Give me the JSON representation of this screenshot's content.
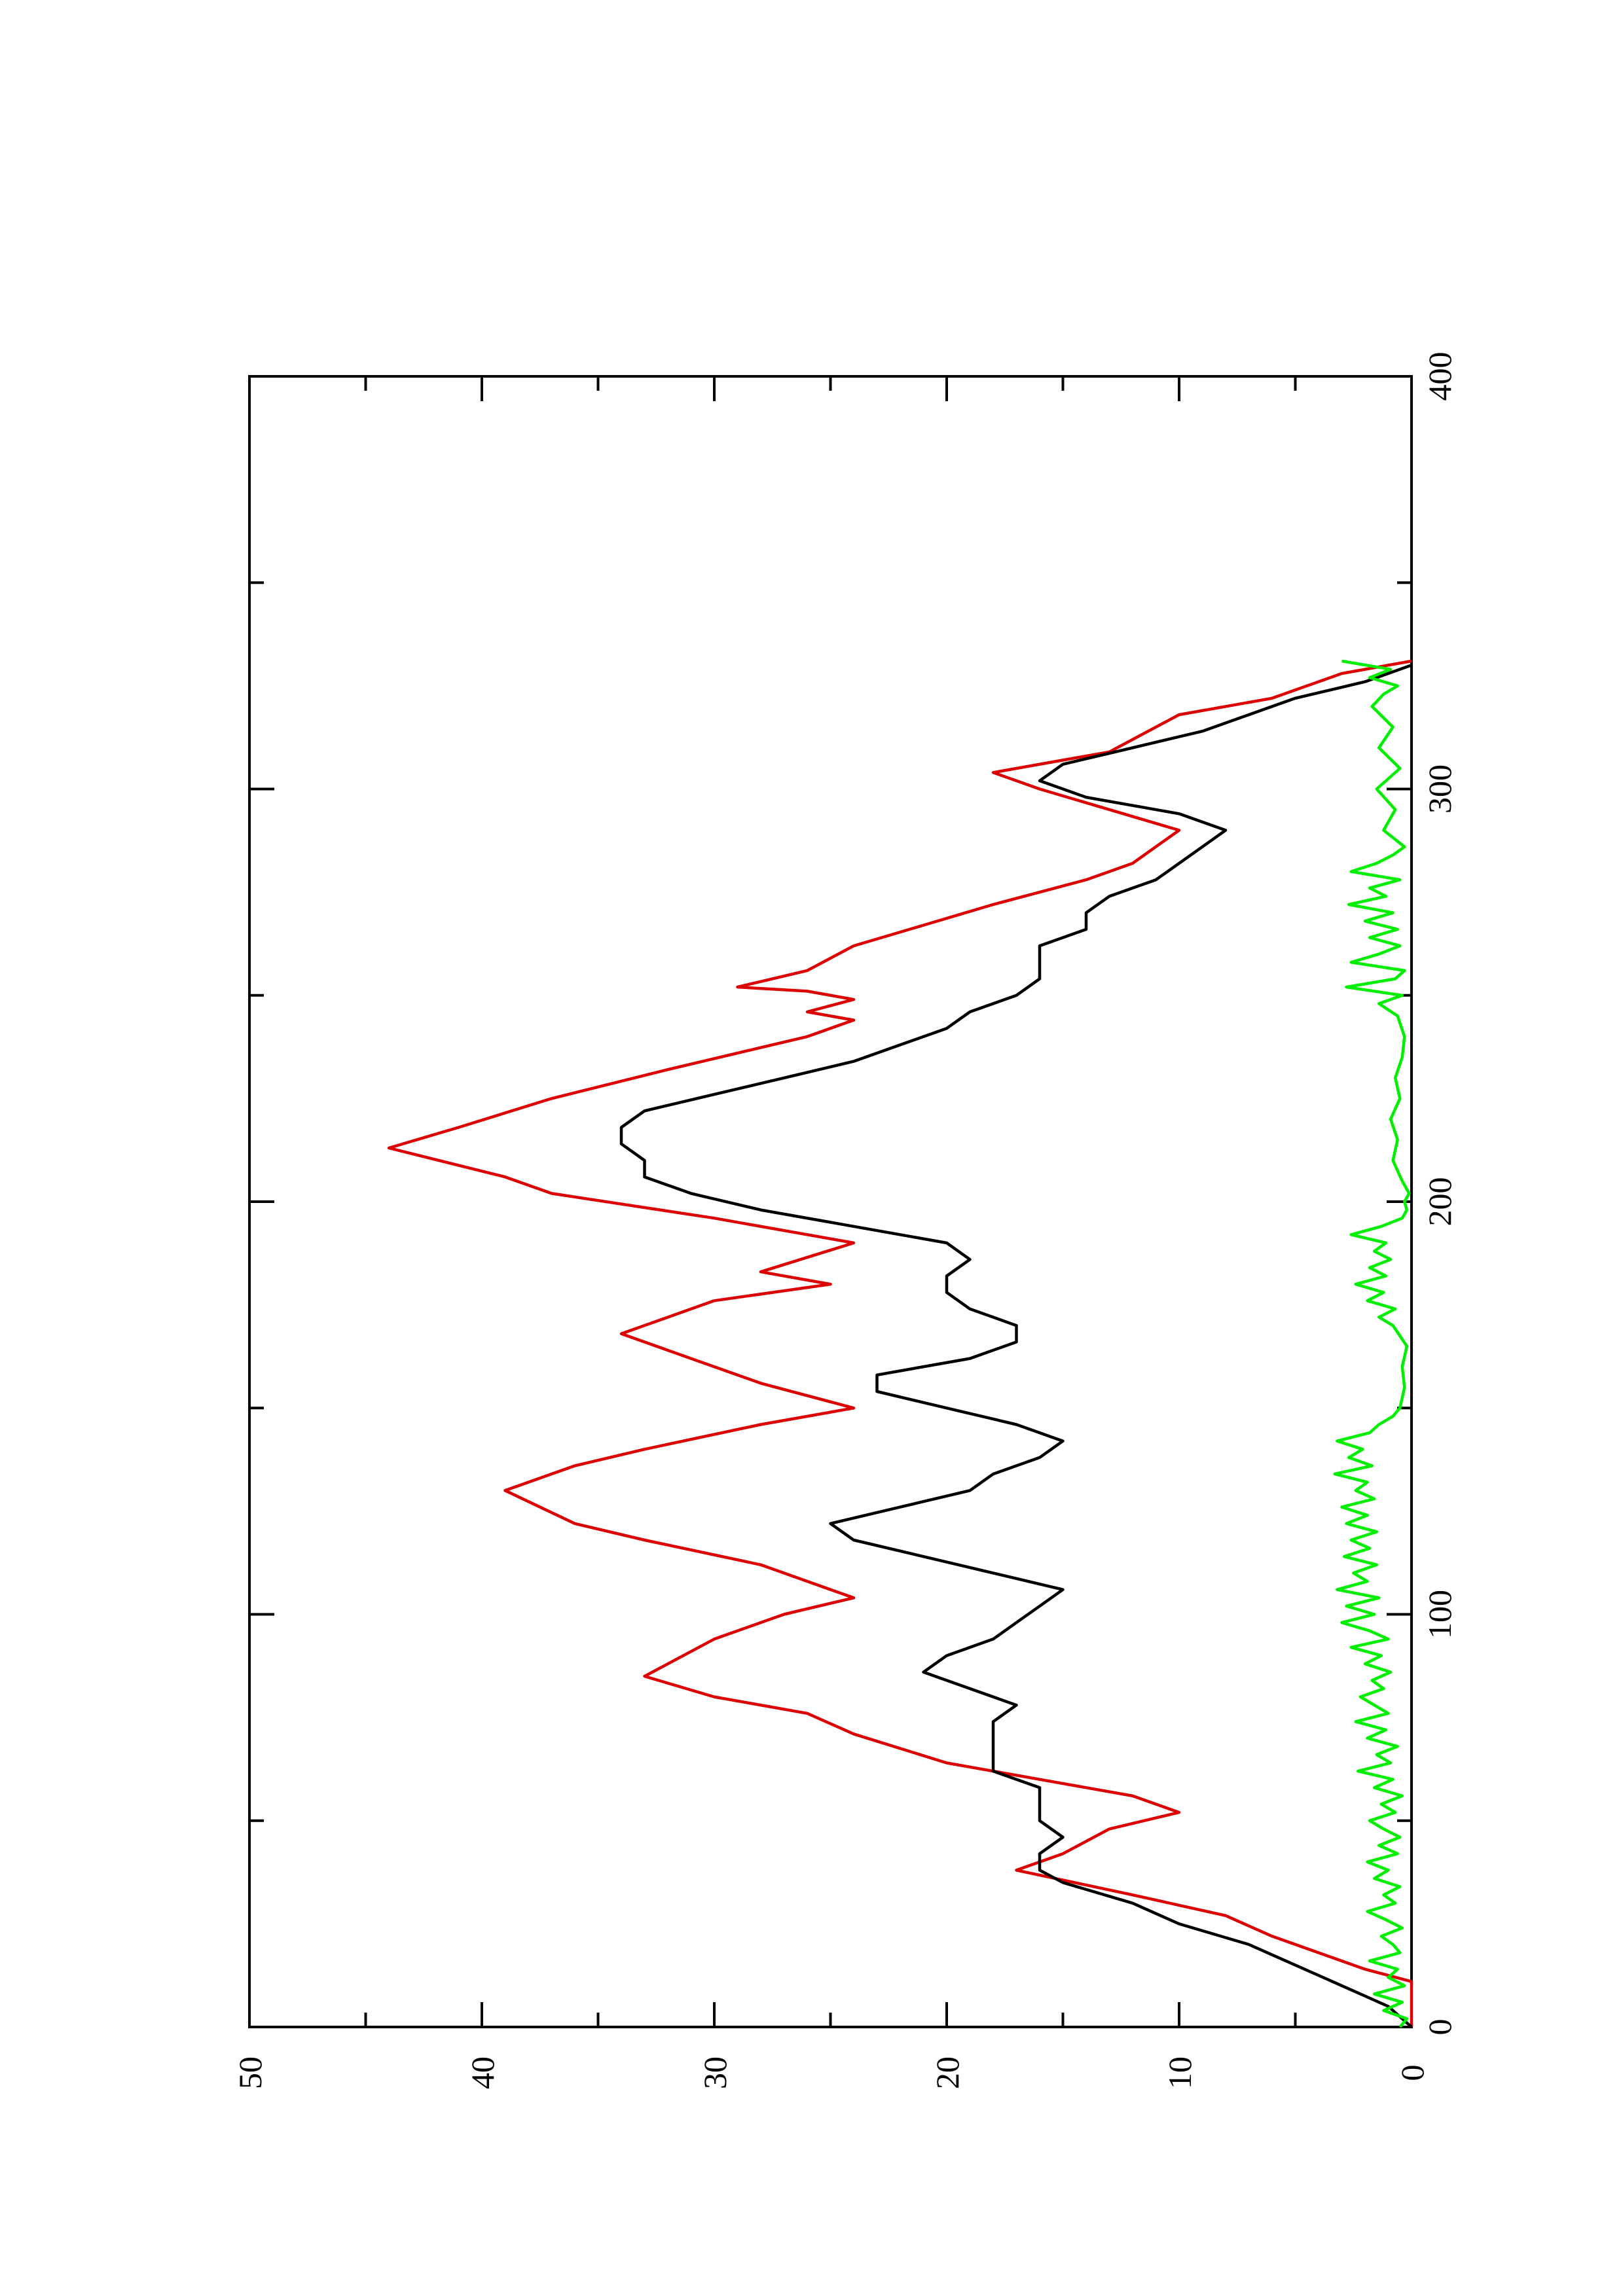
{
  "chart_data": {
    "type": "line",
    "orientation": "rotated-90-ccw",
    "title": "",
    "xlabel": "",
    "ylabel": "",
    "xlim": [
      0,
      400
    ],
    "ylim": [
      0,
      50
    ],
    "x_ticks": [
      0,
      100,
      200,
      300,
      400
    ],
    "x_tick_labels": [
      "0",
      "100",
      "200",
      "300",
      "400"
    ],
    "x_minor_ticks": [
      50,
      150,
      250,
      350
    ],
    "y_ticks": [
      0,
      10,
      20,
      30,
      40,
      50
    ],
    "y_tick_labels": [
      "0",
      "10",
      "20",
      "30",
      "40",
      "50"
    ],
    "y_minor_ticks": [
      5,
      15,
      25,
      35,
      45
    ],
    "grid": false,
    "legend": "none",
    "series": [
      {
        "color": "#dd0000",
        "x": [
          0,
          11,
          14,
          18,
          22,
          27,
          32,
          38,
          42,
          48,
          52,
          56,
          60,
          64,
          71,
          76,
          80,
          85,
          94,
          100,
          104,
          112,
          118,
          122,
          130,
          136,
          140,
          146,
          150,
          156,
          168,
          176,
          180,
          183,
          190,
          196,
          202,
          206,
          213,
          218,
          225,
          232,
          240,
          244,
          246,
          249,
          251,
          252,
          256,
          262,
          267,
          272,
          278,
          282,
          290,
          300,
          304,
          309,
          318,
          322,
          328,
          331
        ],
        "y": [
          0,
          0,
          2,
          4,
          6,
          8,
          12,
          17,
          15,
          13,
          10,
          12,
          16,
          20,
          24,
          26,
          30,
          33,
          30,
          27,
          24,
          28,
          33,
          36,
          39,
          36,
          33,
          28,
          24,
          28,
          34,
          30,
          25,
          28,
          24,
          30,
          37,
          39,
          44,
          41,
          37,
          32,
          26,
          24,
          26,
          24,
          26,
          29,
          26,
          24,
          21,
          18,
          14,
          12,
          10,
          16,
          18,
          13,
          10,
          6,
          3,
          0
        ]
      },
      {
        "color": "#000000",
        "x": [
          0,
          5,
          10,
          15,
          20,
          25,
          30,
          35,
          38,
          42,
          46,
          50,
          54,
          58,
          62,
          66,
          70,
          74,
          78,
          82,
          86,
          90,
          94,
          98,
          102,
          106,
          110,
          114,
          118,
          122,
          126,
          130,
          134,
          138,
          142,
          146,
          150,
          154,
          158,
          162,
          166,
          170,
          174,
          178,
          182,
          186,
          190,
          194,
          198,
          202,
          206,
          210,
          214,
          218,
          222,
          226,
          230,
          234,
          238,
          242,
          246,
          250,
          254,
          258,
          262,
          266,
          270,
          274,
          278,
          282,
          286,
          290,
          294,
          298,
          302,
          306,
          310,
          314,
          318,
          322,
          326,
          330
        ],
        "y": [
          0,
          1,
          3,
          5,
          7,
          10,
          12,
          15,
          16,
          16,
          15,
          16,
          16,
          16,
          18,
          18,
          18,
          18,
          17,
          19,
          21,
          20,
          18,
          17,
          16,
          15,
          18,
          21,
          24,
          25,
          22,
          19,
          18,
          16,
          15,
          17,
          20,
          23,
          23,
          19,
          17,
          17,
          19,
          20,
          20,
          19,
          20,
          24,
          28,
          31,
          33,
          33,
          34,
          34,
          33,
          30,
          27,
          24,
          22,
          20,
          19,
          17,
          16,
          16,
          16,
          14,
          14,
          13,
          11,
          10,
          9,
          8,
          10,
          14,
          16,
          15,
          12,
          9,
          7,
          5,
          2,
          0
        ]
      },
      {
        "color": "#00ee00",
        "x": [
          0,
          2,
          4,
          6,
          8,
          10,
          12,
          14,
          16,
          18,
          20,
          22,
          24,
          26,
          28,
          30,
          32,
          34,
          36,
          38,
          40,
          42,
          44,
          46,
          48,
          50,
          52,
          54,
          56,
          58,
          60,
          62,
          64,
          66,
          68,
          70,
          72,
          74,
          76,
          78,
          80,
          82,
          84,
          86,
          88,
          90,
          92,
          94,
          96,
          98,
          100,
          102,
          104,
          106,
          108,
          110,
          112,
          114,
          116,
          118,
          120,
          122,
          124,
          126,
          128,
          130,
          132,
          134,
          136,
          138,
          140,
          142,
          144,
          146,
          148,
          150,
          155,
          160,
          165,
          170,
          172,
          174,
          176,
          178,
          180,
          182,
          184,
          186,
          188,
          190,
          192,
          194,
          196,
          198,
          200,
          202,
          205,
          210,
          215,
          220,
          225,
          230,
          235,
          240,
          245,
          248,
          250,
          252,
          254,
          256,
          258,
          260,
          262,
          264,
          266,
          268,
          270,
          272,
          274,
          276,
          278,
          280,
          282,
          284,
          286,
          290,
          295,
          300,
          305,
          310,
          315,
          320,
          323,
          325,
          327,
          329,
          331
        ],
        "y": [
          0.5,
          0.2,
          1.2,
          0.4,
          1.6,
          0.3,
          1.0,
          0.6,
          1.8,
          0.5,
          0.8,
          1.3,
          0.4,
          1.1,
          1.9,
          0.7,
          1.2,
          0.5,
          1.6,
          1.0,
          1.9,
          0.6,
          1.4,
          0.5,
          1.2,
          1.8,
          0.7,
          1.3,
          0.4,
          1.6,
          0.8,
          2.3,
          0.9,
          1.5,
          0.6,
          1.9,
          1.1,
          2.4,
          1.0,
          1.6,
          2.2,
          1.2,
          1.7,
          0.9,
          2.0,
          1.3,
          2.6,
          1.0,
          1.8,
          3.0,
          1.6,
          2.8,
          1.4,
          3.2,
          1.9,
          2.5,
          1.5,
          2.9,
          1.8,
          2.6,
          1.5,
          2.8,
          1.9,
          3.0,
          1.6,
          2.4,
          1.9,
          3.3,
          1.7,
          2.7,
          2.1,
          3.2,
          1.8,
          1.4,
          0.8,
          0.5,
          0.3,
          0.4,
          0.2,
          0.8,
          1.4,
          0.7,
          1.9,
          1.2,
          2.4,
          1.1,
          1.8,
          0.9,
          1.6,
          1.1,
          2.6,
          1.3,
          0.4,
          0.2,
          0.3,
          0.1,
          0.4,
          0.8,
          0.6,
          0.9,
          0.5,
          0.7,
          0.4,
          0.3,
          0.6,
          1.4,
          0.4,
          2.8,
          0.7,
          0.3,
          2.6,
          1.4,
          0.5,
          1.8,
          0.6,
          2.0,
          0.8,
          2.7,
          1.1,
          1.8,
          0.5,
          2.6,
          1.5,
          0.8,
          0.3,
          1.2,
          0.7,
          1.5,
          0.5,
          1.4,
          0.8,
          1.7,
          1.2,
          0.6,
          1.8,
          0.9,
          3.0
        ]
      }
    ]
  }
}
